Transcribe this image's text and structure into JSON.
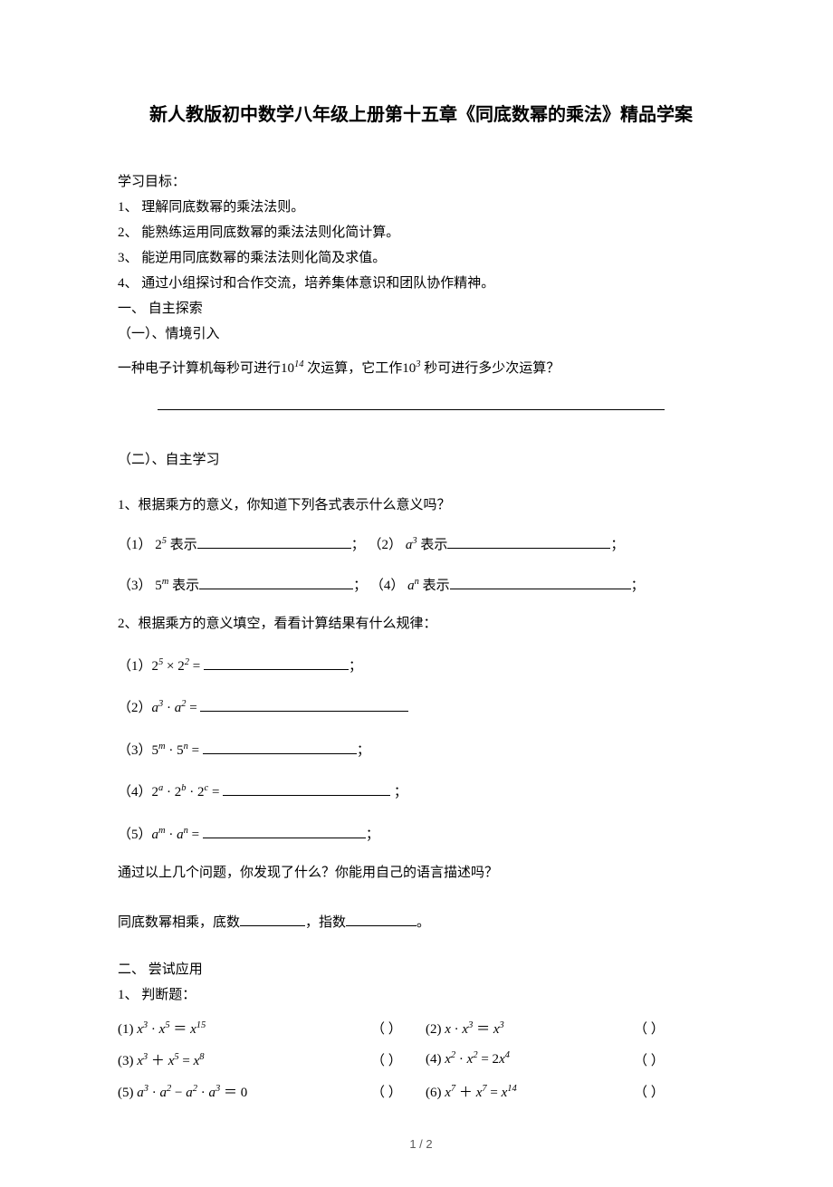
{
  "title": "新人教版初中数学八年级上册第十五章《同底数幂的乘法》精品学案",
  "objectives_label": "学习目标：",
  "objectives": [
    "理解同底数幂的乘法法则。",
    "能熟练运用同底数幂的乘法法则化简计算。",
    "能逆用同底数幂的乘法法则化简及求值。",
    "通过小组探讨和合作交流，培养集体意识和团队协作精神。"
  ],
  "sec1_label": "一、 自主探索",
  "sec1a_label": "（一）、情境引入",
  "sec1a_q_prefix": "一种电子计算机每秒可进行",
  "sec1a_q_mid": "次运算，它工作",
  "sec1a_q_suffix": "秒可进行多少次运算？",
  "sec1b_label": "（二）、自主学习",
  "q1_text": "1、根据乘方的意义，你知道下列各式表示什么意义吗？",
  "q1_items_left": [
    "（1）",
    "（3）"
  ],
  "q1_items_right": [
    "（2）",
    "（4）"
  ],
  "q1_exp": [
    "2",
    "a",
    "5",
    "a"
  ],
  "q1_sup": [
    "5",
    "3",
    "m",
    "n"
  ],
  "show_label": "表示",
  "q2_text": "2、根据乘方的意义填空，看看计算结果有什么规律：",
  "q2_items": [
    {
      "num": "（1）",
      "expr_html": "2<sup>5</sup> × 2<sup>2</sup>",
      "blank_w": 160,
      "tail": "；"
    },
    {
      "num": "（2）",
      "expr_html": "<span class=\"italic\">a</span><sup>3</sup> · <span class=\"italic\">a</span><sup>2</sup>",
      "blank_w": 230,
      "tail": ""
    },
    {
      "num": "（3）",
      "expr_html": "5<sup><span class=\"italic\">m</span></sup> · 5<sup><span class=\"italic\">n</span></sup>",
      "blank_w": 170,
      "tail": "；"
    },
    {
      "num": "（4）",
      "expr_html": "2<sup><span class=\"italic\">a</span></sup> · 2<sup><span class=\"italic\">b</span></sup> · 2<sup><span class=\"italic\">c</span></sup>",
      "blank_w": 185,
      "tail": " ；"
    },
    {
      "num": "（5）",
      "expr_html": "<span class=\"italic\">a</span><sup><span class=\"italic\">m</span></sup> · <span class=\"italic\">a</span><sup><span class=\"italic\">n</span></sup>",
      "blank_w": 180,
      "tail": "；"
    }
  ],
  "q2_followup": "通过以上几个问题，你发现了什么？你能用自己的语言描述吗？",
  "q2_rule_a": "同底数幂相乘，底数",
  "q2_rule_b": "，指数",
  "q2_rule_c": "。",
  "sec2_label": "二、 尝试应用",
  "sec2_q1_label": "1、 判断题：",
  "tf": [
    {
      "l_num": "(1)",
      "l_expr": "<span class=\"italic\">x</span><sup>3</sup> · <span class=\"italic\">x</span><sup>5</sup> ＝ <span class=\"italic\">x</span><sup>15</sup>",
      "r_num": "(2)",
      "r_expr": "<span class=\"italic\">x</span> · <span class=\"italic\">x</span><sup>3</sup> ＝ <span class=\"italic\">x</span><sup>3</sup>"
    },
    {
      "l_num": "(3)",
      "l_expr": "<span class=\"italic\">x</span><sup>3</sup> ＋ <span class=\"italic\">x</span><sup>5</sup> = <span class=\"italic\">x</span><sup>8</sup>",
      "r_num": "(4)",
      "r_expr": "<span class=\"italic\">x</span><sup>2</sup> · <span class=\"italic\">x</span><sup>2</sup> = 2<span class=\"italic\">x</span><sup>4</sup>"
    },
    {
      "l_num": "(5)",
      "l_expr": "<span class=\"italic\">a</span><sup>3</sup> · <span class=\"italic\">a</span><sup>2</sup> − <span class=\"italic\">a</span><sup>2</sup> · <span class=\"italic\">a</span><sup>3</sup> ＝ 0",
      "r_num": "(6)",
      "r_expr": "<span class=\"italic\">x</span><sup>7</sup> ＋ <span class=\"italic\">x</span><sup>7</sup> = <span class=\"italic\">x</span><sup>14</sup>"
    }
  ],
  "paren_mark": "（  ）",
  "footer": "1 / 2",
  "colors": {
    "text": "#000000",
    "bg": "#ffffff",
    "footer": "#595959"
  },
  "fonts": {
    "title_family": "SimHei",
    "body_family": "SimSun",
    "math_family": "Times New Roman",
    "title_size_pt": 15,
    "body_size_pt": 11
  }
}
